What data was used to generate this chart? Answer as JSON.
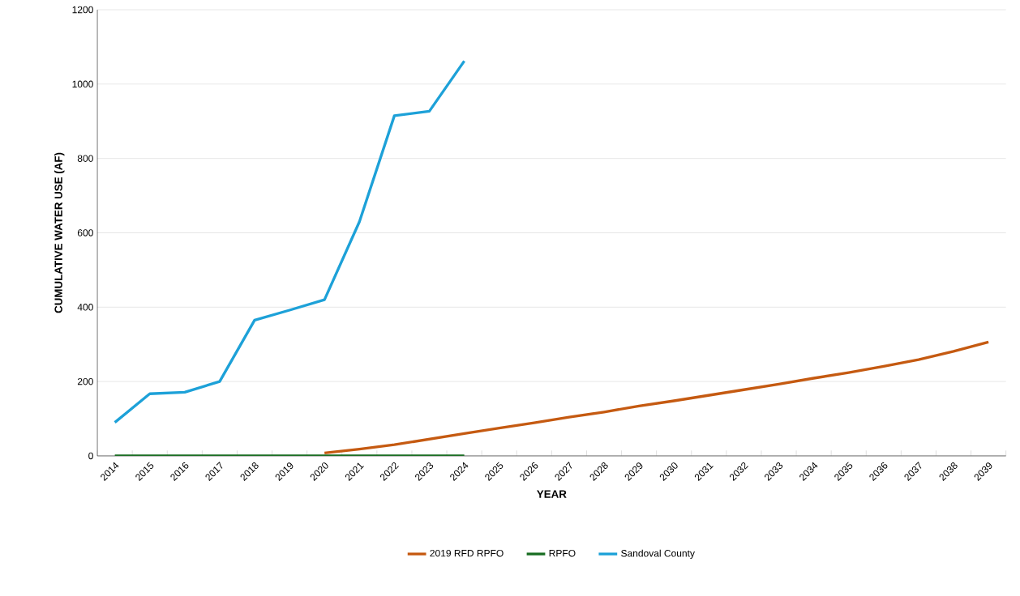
{
  "chart_data": {
    "type": "line",
    "xlabel": "YEAR",
    "ylabel": "CUMULATIVE WATER USE (AF)",
    "categories": [
      "2014",
      "2015",
      "2016",
      "2017",
      "2018",
      "2019",
      "2020",
      "2021",
      "2022",
      "2023",
      "2024",
      "2025",
      "2026",
      "2027",
      "2028",
      "2029",
      "2030",
      "2031",
      "2032",
      "2033",
      "2034",
      "2035",
      "2036",
      "2037",
      "2038",
      "2039"
    ],
    "series": [
      {
        "name": "2019 RFD RPFO",
        "color": "#c55a11",
        "values": [
          null,
          null,
          null,
          null,
          null,
          null,
          8,
          18,
          30,
          45,
          60,
          75,
          89,
          104,
          118,
          134,
          148,
          163,
          178,
          193,
          209,
          224,
          241,
          259,
          281,
          306
        ]
      },
      {
        "name": "RPFO",
        "color": "#1a6e23",
        "values": [
          0,
          0,
          0,
          0,
          0,
          0,
          0,
          0,
          0,
          0,
          0,
          null,
          null,
          null,
          null,
          null,
          null,
          null,
          null,
          null,
          null,
          null,
          null,
          null,
          null,
          null
        ]
      },
      {
        "name": "Sandoval County",
        "color": "#1da1d8",
        "values": [
          90,
          167,
          171,
          200,
          365,
          392,
          420,
          630,
          915,
          927,
          1062,
          null,
          null,
          null,
          null,
          null,
          null,
          null,
          null,
          null,
          null,
          null,
          null,
          null,
          null,
          null
        ]
      }
    ],
    "ylim": [
      0,
      1200
    ],
    "yticks": [
      0,
      200,
      400,
      600,
      800,
      1000,
      1200
    ],
    "grid": "y",
    "legend": "bottom",
    "marker": "none",
    "line_style": "solid"
  }
}
